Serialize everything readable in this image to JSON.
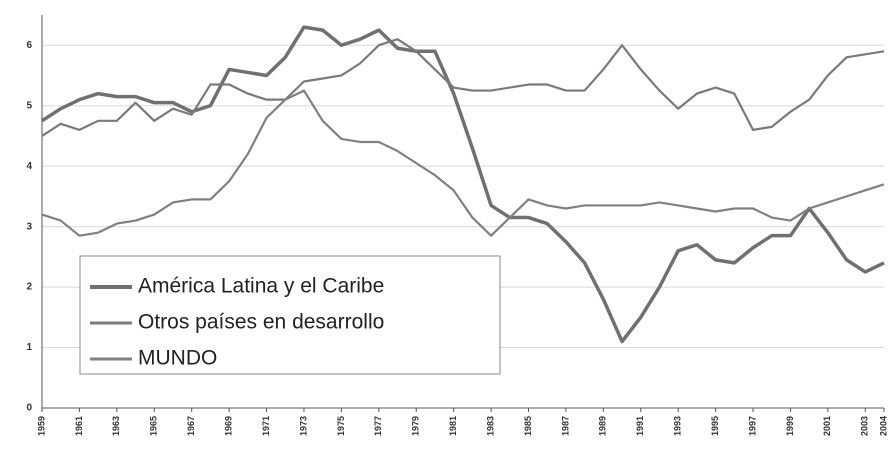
{
  "chart_data": {
    "type": "line",
    "x": [
      1959,
      1960,
      1961,
      1962,
      1963,
      1964,
      1965,
      1966,
      1967,
      1968,
      1969,
      1970,
      1971,
      1972,
      1973,
      1974,
      1975,
      1976,
      1977,
      1978,
      1979,
      1980,
      1981,
      1982,
      1983,
      1984,
      1985,
      1986,
      1987,
      1988,
      1989,
      1990,
      1991,
      1992,
      1993,
      1994,
      1995,
      1996,
      1997,
      1998,
      1999,
      2000,
      2001,
      2002,
      2003,
      2004
    ],
    "series": [
      {
        "name": "América Latina y el Caribe",
        "color": "#707070",
        "values": [
          4.75,
          4.95,
          5.1,
          5.2,
          5.15,
          5.15,
          5.05,
          5.05,
          4.9,
          5.0,
          5.6,
          5.55,
          5.5,
          5.8,
          6.3,
          6.25,
          6.0,
          6.1,
          6.25,
          5.95,
          5.9,
          5.9,
          5.2,
          4.3,
          3.35,
          3.15,
          3.15,
          3.05,
          2.75,
          2.4,
          1.8,
          1.1,
          1.5,
          2.0,
          2.6,
          2.7,
          2.45,
          2.4,
          2.65,
          2.85,
          2.85,
          3.3,
          2.9,
          2.45,
          2.25,
          2.4
        ]
      },
      {
        "name": "Otros países en desarrollo",
        "color": "#7a7a7a",
        "values": [
          4.5,
          4.7,
          4.6,
          4.75,
          4.75,
          5.05,
          4.75,
          4.95,
          4.85,
          5.35,
          5.35,
          5.2,
          5.1,
          5.1,
          5.4,
          5.45,
          5.5,
          5.7,
          6.0,
          6.1,
          5.9,
          5.6,
          5.3,
          5.25,
          5.25,
          5.3,
          5.35,
          5.35,
          5.25,
          5.25,
          5.6,
          6.0,
          5.6,
          5.25,
          4.95,
          5.2,
          5.3,
          5.2,
          4.6,
          4.65,
          4.9,
          5.1,
          5.5,
          5.8,
          5.85,
          5.9
        ]
      },
      {
        "name": "MUNDO",
        "color": "#808080",
        "values": [
          3.2,
          3.1,
          2.85,
          2.9,
          3.05,
          3.1,
          3.2,
          3.4,
          3.45,
          3.45,
          3.75,
          4.2,
          4.8,
          5.1,
          5.25,
          4.75,
          4.45,
          4.4,
          4.4,
          4.25,
          4.05,
          3.85,
          3.6,
          3.15,
          2.85,
          3.15,
          3.45,
          3.35,
          3.3,
          3.35,
          3.35,
          3.35,
          3.35,
          3.4,
          3.35,
          3.3,
          3.25,
          3.3,
          3.3,
          3.15,
          3.1,
          3.3,
          3.4,
          3.5,
          3.6,
          3.7
        ]
      }
    ],
    "xlim": [
      1959,
      2004
    ],
    "xticks": [
      1959,
      1961,
      1963,
      1965,
      1967,
      1969,
      1971,
      1973,
      1975,
      1977,
      1979,
      1981,
      1983,
      1985,
      1987,
      1989,
      1991,
      1993,
      1995,
      1997,
      1999,
      2001,
      2003,
      2004
    ],
    "ylim": [
      0,
      6.5
    ],
    "yticks": [
      0,
      1,
      2,
      3,
      4,
      5,
      6
    ],
    "grid": true,
    "legend": "lower-left"
  }
}
